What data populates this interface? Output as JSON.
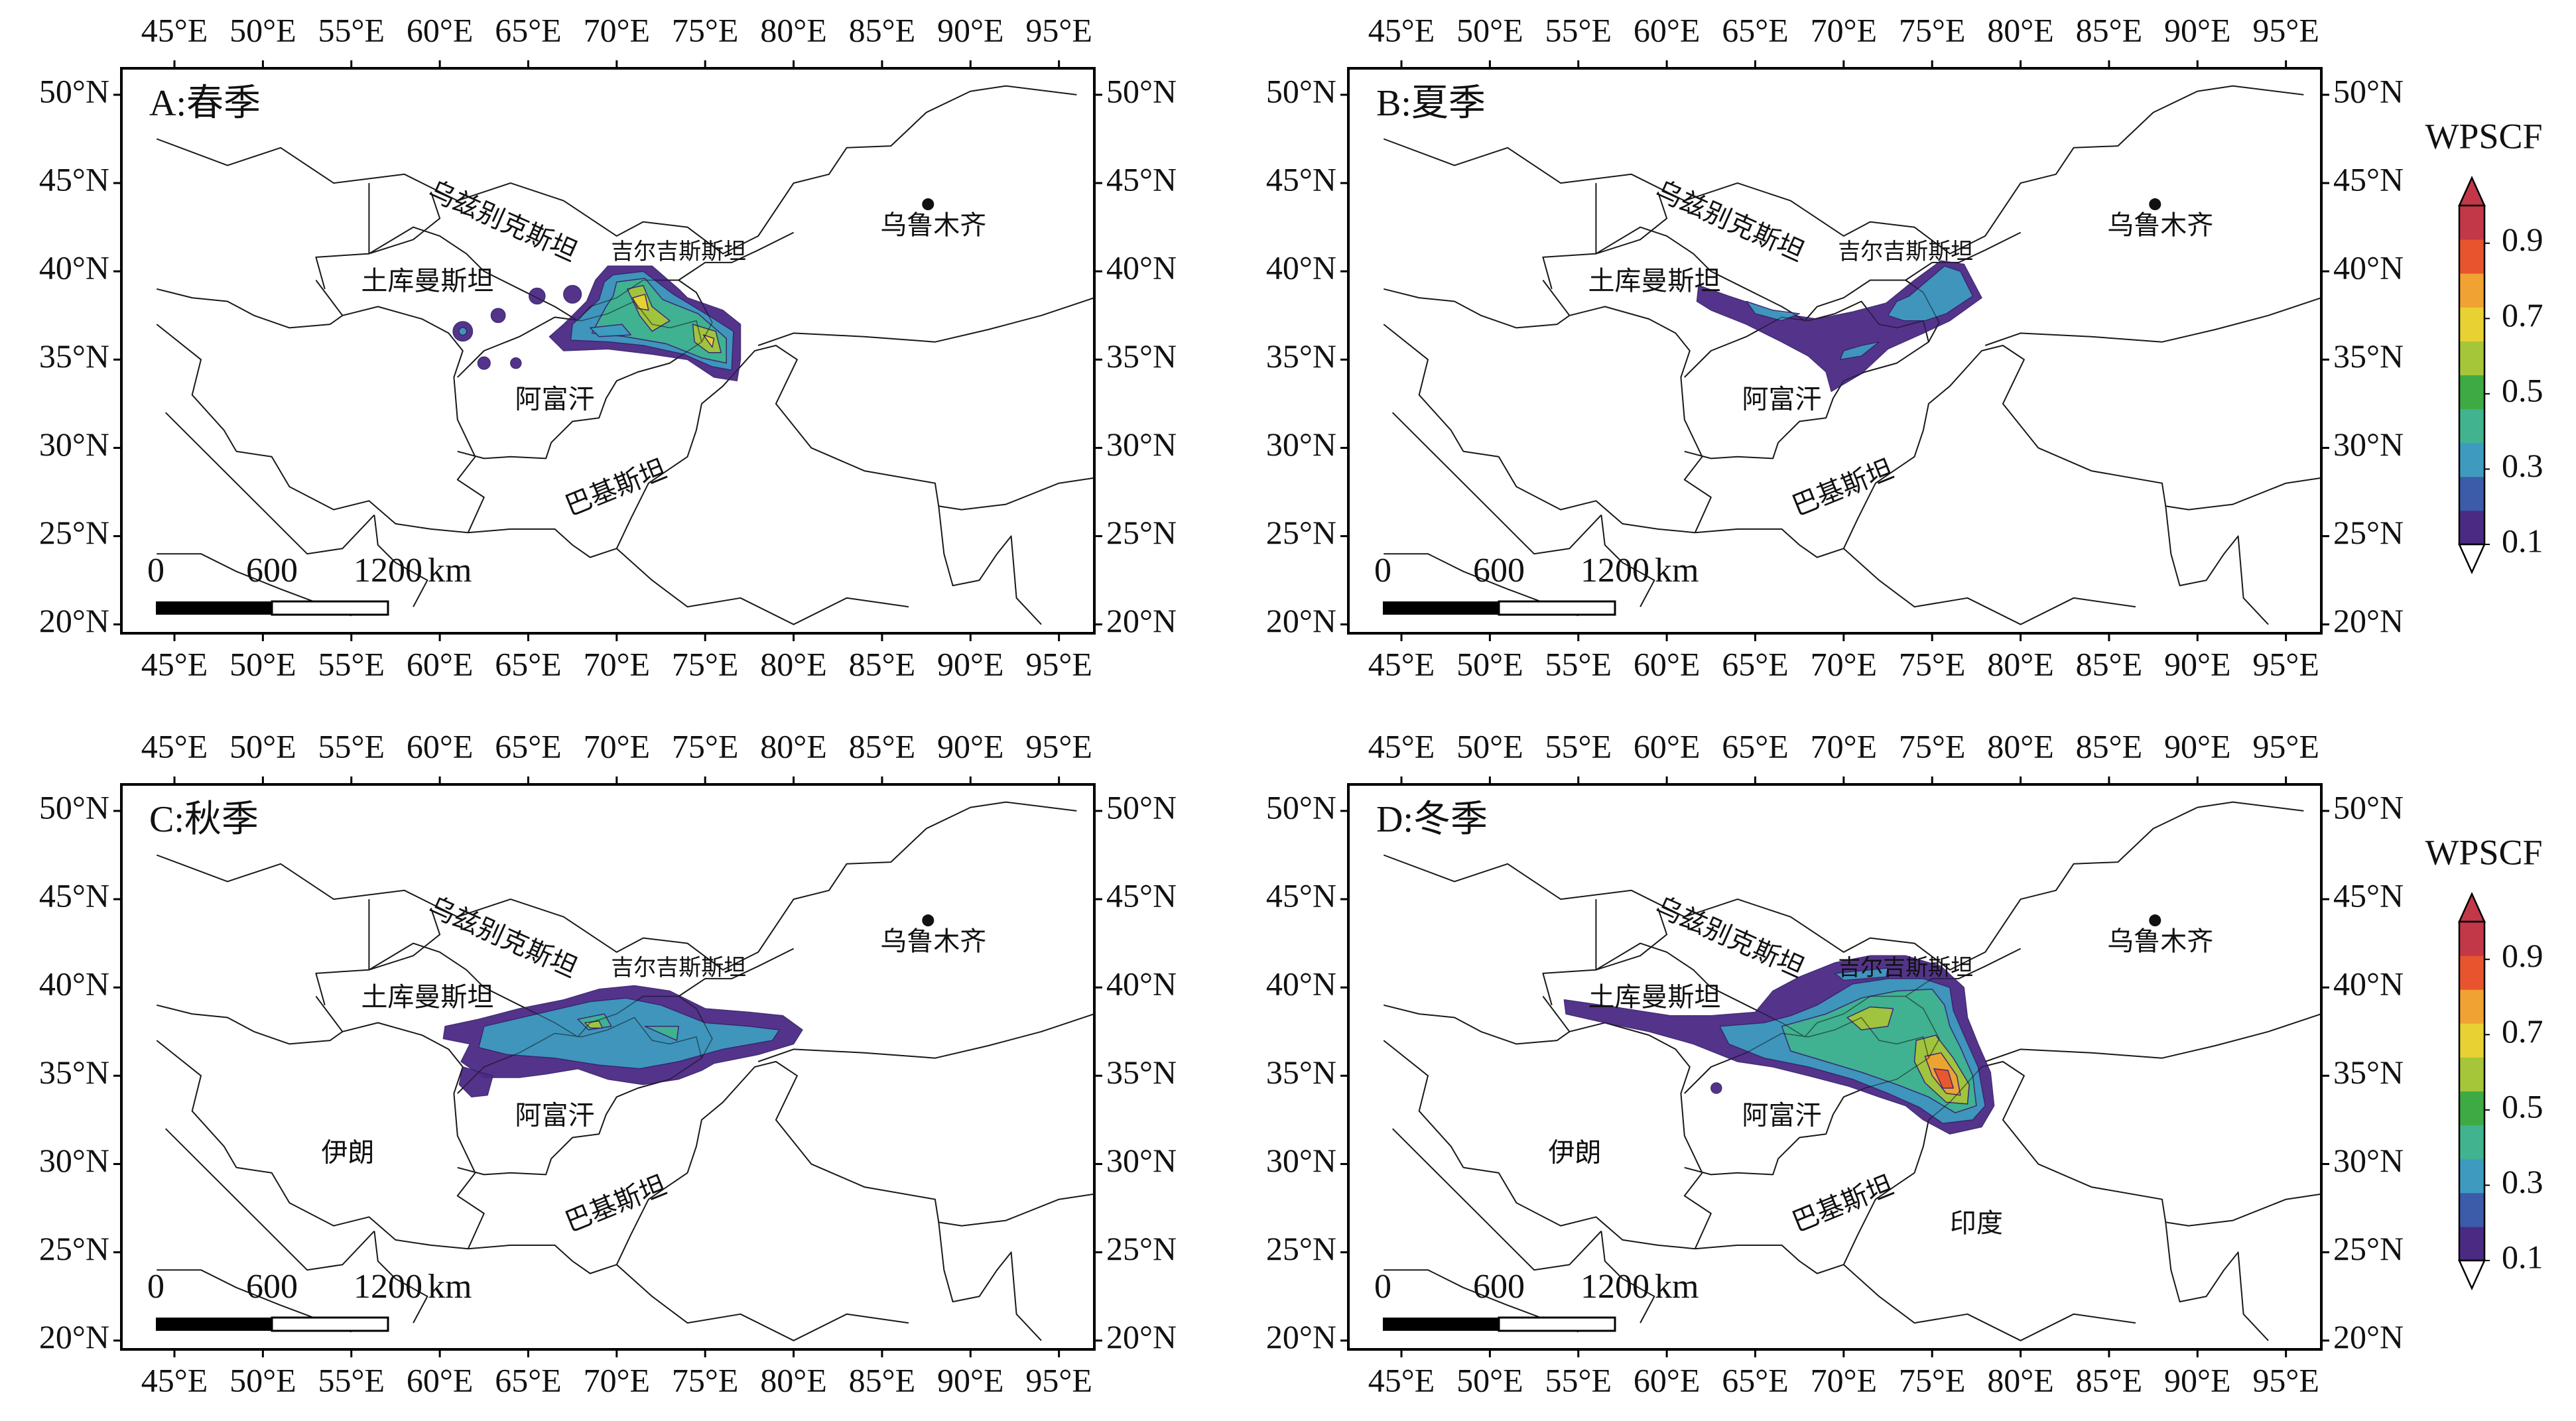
{
  "map": {
    "lon_ticks": [
      "45°E",
      "50°E",
      "55°E",
      "60°E",
      "65°E",
      "70°E",
      "75°E",
      "80°E",
      "85°E",
      "90°E",
      "95°E"
    ],
    "lat_ticks": [
      "50°N",
      "45°N",
      "40°N",
      "35°N",
      "30°N",
      "25°N",
      "20°N"
    ],
    "lon_range": [
      42,
      97
    ],
    "lat_range": [
      19.5,
      51.5
    ],
    "scale_bar": {
      "labels": [
        "0",
        "600",
        "1200"
      ],
      "unit": "km"
    },
    "city_marker": {
      "label": "乌鲁木齐",
      "lon": 87.6,
      "lat": 43.8
    }
  },
  "colorbar": {
    "title": "WPSCF",
    "tick_labels": [
      "0.9",
      "0.7",
      "0.5",
      "0.3",
      "0.1"
    ],
    "range": [
      0.1,
      1.0
    ],
    "colors": [
      "#4b2a84",
      "#3c5ba8",
      "#3e9bbf",
      "#41b38f",
      "#3eaa43",
      "#a6c63a",
      "#e8d233",
      "#f0a232",
      "#e8542e",
      "#c23848"
    ]
  },
  "panels": [
    {
      "id": "A",
      "title": "A:春季",
      "season": "spring",
      "place_labels": [
        {
          "text": "乌兹别克斯坦",
          "lon": 63.5,
          "lat": 42.7,
          "rotate": 24
        },
        {
          "text": "吉尔吉斯斯坦",
          "lon": 73.5,
          "lat": 41.0,
          "rotate": 0
        },
        {
          "text": "土库曼斯坦",
          "lon": 59.3,
          "lat": 39.3,
          "rotate": 0
        },
        {
          "text": "阿富汗",
          "lon": 66.5,
          "lat": 32.6,
          "rotate": 0
        },
        {
          "text": "巴基斯坦",
          "lon": 70.0,
          "lat": 27.6,
          "rotate": -22
        }
      ]
    },
    {
      "id": "B",
      "title": "B:夏季",
      "season": "summer",
      "place_labels": [
        {
          "text": "乌兹别克斯坦",
          "lon": 63.5,
          "lat": 42.7,
          "rotate": 24
        },
        {
          "text": "吉尔吉斯斯坦",
          "lon": 73.5,
          "lat": 41.0,
          "rotate": 0
        },
        {
          "text": "土库曼斯坦",
          "lon": 59.3,
          "lat": 39.3,
          "rotate": 0
        },
        {
          "text": "阿富汗",
          "lon": 66.5,
          "lat": 32.6,
          "rotate": 0
        },
        {
          "text": "巴基斯坦",
          "lon": 70.0,
          "lat": 27.6,
          "rotate": -22
        }
      ]
    },
    {
      "id": "C",
      "title": "C:秋季",
      "season": "autumn",
      "place_labels": [
        {
          "text": "乌兹别克斯坦",
          "lon": 63.5,
          "lat": 42.7,
          "rotate": 24
        },
        {
          "text": "吉尔吉斯斯坦",
          "lon": 73.5,
          "lat": 41.0,
          "rotate": 0
        },
        {
          "text": "土库曼斯坦",
          "lon": 59.3,
          "lat": 39.3,
          "rotate": 0
        },
        {
          "text": "伊朗",
          "lon": 54.8,
          "lat": 30.5,
          "rotate": 0
        },
        {
          "text": "阿富汗",
          "lon": 66.5,
          "lat": 32.6,
          "rotate": 0
        },
        {
          "text": "巴基斯坦",
          "lon": 70.0,
          "lat": 27.6,
          "rotate": -22
        }
      ]
    },
    {
      "id": "D",
      "title": "D:冬季",
      "season": "winter",
      "place_labels": [
        {
          "text": "乌兹别克斯坦",
          "lon": 63.5,
          "lat": 42.7,
          "rotate": 24
        },
        {
          "text": "吉尔吉斯斯坦",
          "lon": 73.5,
          "lat": 41.0,
          "rotate": 0
        },
        {
          "text": "土库曼斯坦",
          "lon": 59.3,
          "lat": 39.3,
          "rotate": 0
        },
        {
          "text": "伊朗",
          "lon": 54.8,
          "lat": 30.5,
          "rotate": 0
        },
        {
          "text": "阿富汗",
          "lon": 66.5,
          "lat": 32.6,
          "rotate": 0
        },
        {
          "text": "巴基斯坦",
          "lon": 70.0,
          "lat": 27.6,
          "rotate": -22
        },
        {
          "text": "印度",
          "lon": 77.5,
          "lat": 26.5,
          "rotate": 0
        }
      ]
    }
  ]
}
